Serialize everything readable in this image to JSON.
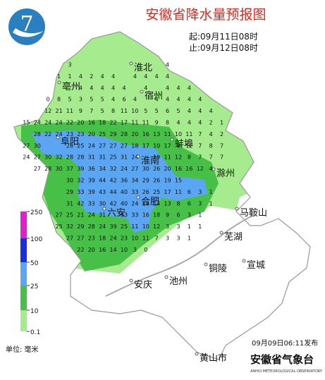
{
  "title": "安徽省降水量预报图",
  "period": {
    "start": "起:09月11日08时",
    "end": "止:09月12日08时"
  },
  "cities": [
    "淮北",
    "亳州",
    "宿州",
    "阜阳",
    "蚌埠",
    "淮南",
    "滁州",
    "六安",
    "合肥",
    "马鞍山",
    "芜湖",
    "铜陵",
    "宣城",
    "安庆",
    "池州",
    "黄山市"
  ],
  "legend": {
    "levels": [
      "250",
      "100",
      "50",
      "25",
      "10",
      "0.1"
    ],
    "unit": "单位: 毫米"
  },
  "issued": "09月09日06:11发布",
  "publisher": "安徽省气象台",
  "publisher_en": "ANHUI METEOROLOGICAL OBSERVATORY",
  "grid_values": [
    [
      null,
      null,
      null,
      null,
      null,
      "3",
      null,
      null,
      null,
      null,
      null,
      null,
      null,
      null,
      "4",
      null,
      null,
      null,
      null,
      null,
      null
    ],
    [
      null,
      null,
      null,
      null,
      "1",
      "1",
      "4",
      "2",
      "4",
      "4",
      null,
      "4",
      "4",
      "4",
      "4",
      null,
      null,
      null,
      null,
      null,
      null
    ],
    [
      null,
      null,
      null,
      null,
      null,
      null,
      "4",
      "4",
      "4",
      "4",
      "4",
      null,
      "4",
      null,
      "4",
      "4",
      "4",
      null,
      null,
      null,
      null
    ],
    [
      null,
      null,
      null,
      "0",
      "8",
      "5",
      "3",
      "5",
      "5",
      "4",
      "6",
      "4",
      null,
      "4",
      "4",
      "4",
      "4",
      "4",
      null,
      null,
      null
    ],
    [
      null,
      null,
      null,
      "12",
      "21",
      "11",
      "9",
      "7",
      "5",
      "8",
      "11",
      "10",
      "5",
      "5",
      "6",
      "5",
      "4",
      "4",
      "4",
      null,
      null
    ],
    [
      null,
      "15",
      "24",
      "24",
      "24",
      "22",
      "20",
      "16",
      "18",
      "22",
      "17",
      "11",
      "11",
      "9",
      "8",
      "4",
      "4",
      "4",
      "2",
      "1",
      null
    ],
    [
      null,
      null,
      "28",
      "22",
      "24",
      "23",
      "23",
      "20",
      "25",
      "29",
      "28",
      "20",
      "16",
      "13",
      "11",
      "10",
      "11",
      "7",
      "4",
      "2",
      null
    ],
    [
      null,
      "27",
      "30",
      null,
      null,
      "28",
      "25",
      "24",
      "27",
      "27",
      "27",
      "18",
      "17",
      "10",
      "17",
      "8",
      "12",
      "7",
      "8",
      "7",
      null
    ],
    [
      null,
      "24",
      "27",
      "30",
      "32",
      "28",
      "28",
      "31",
      "31",
      "25",
      "31",
      "24",
      null,
      "19",
      "11",
      "12",
      "8",
      "7",
      "7",
      "7",
      null
    ],
    [
      null,
      null,
      "27",
      "28",
      "30",
      "37",
      "39",
      "36",
      "34",
      "32",
      "24",
      "27",
      "30",
      "26",
      "20",
      "16",
      "16",
      "12",
      "4",
      null,
      null
    ],
    [
      null,
      null,
      null,
      null,
      null,
      "30",
      "32",
      "39",
      "44",
      "42",
      "36",
      "34",
      "29",
      "26",
      "19",
      "15",
      null,
      null,
      null,
      null,
      null
    ],
    [
      null,
      null,
      null,
      null,
      null,
      "29",
      "33",
      "39",
      "43",
      "44",
      "40",
      "33",
      "26",
      "25",
      "17",
      "11",
      "6",
      "3",
      "1",
      null,
      null
    ],
    [
      null,
      null,
      null,
      null,
      null,
      "31",
      "42",
      "33",
      "30",
      "42",
      "40",
      "24",
      "18",
      "14",
      "13",
      "8",
      "6",
      "3",
      "1",
      null,
      null
    ],
    [
      null,
      null,
      null,
      null,
      "27",
      "25",
      "21",
      "24",
      "31",
      null,
      "33",
      "33",
      "16",
      "18",
      "9",
      "6",
      "3",
      "1",
      null,
      null,
      null
    ],
    [
      null,
      null,
      null,
      null,
      "25",
      "32",
      "29",
      "28",
      "24",
      "39",
      "25",
      "11",
      "10",
      "12",
      "3",
      "3",
      "1",
      "1",
      null,
      null,
      null
    ],
    [
      null,
      null,
      null,
      null,
      null,
      "27",
      "27",
      "23",
      "18",
      "24",
      "23",
      "10",
      "11",
      "7",
      "3",
      "3",
      "1",
      null,
      null,
      null,
      null
    ],
    [
      null,
      null,
      null,
      null,
      null,
      null,
      "22",
      "20",
      "16",
      "14",
      "10",
      "3",
      "0",
      null,
      null,
      null,
      null,
      null,
      null,
      null,
      null
    ]
  ]
}
